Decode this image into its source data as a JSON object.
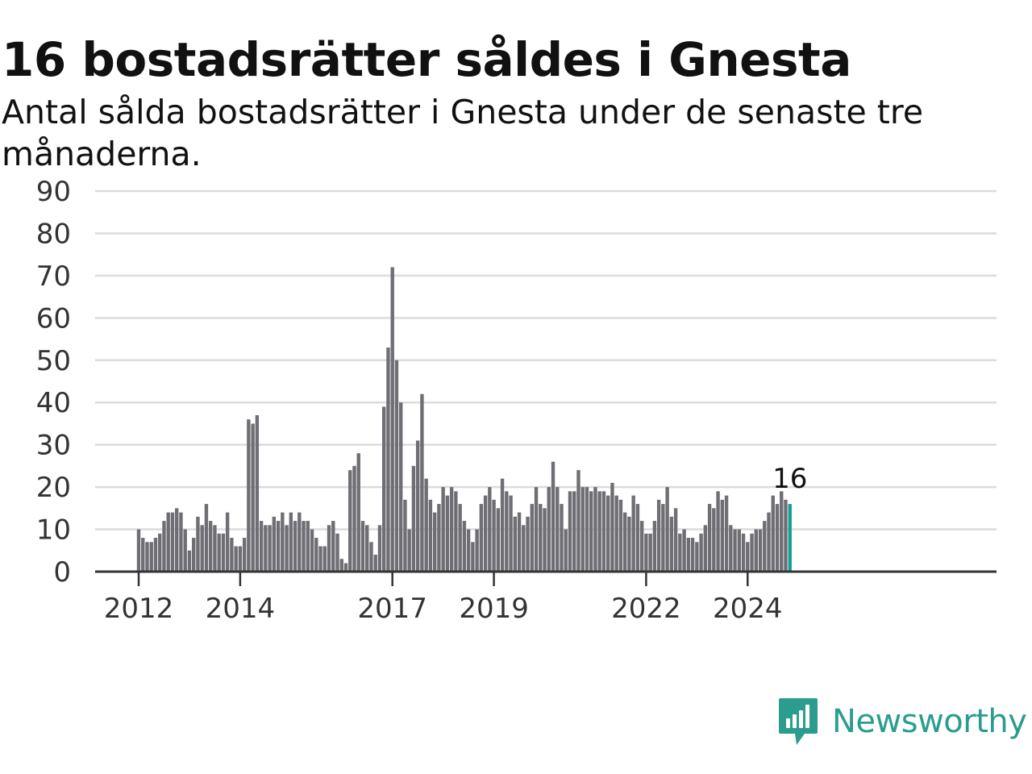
{
  "title": "16 bostadsrätter såldes i Gnesta",
  "subtitle": "Antal sålda bostadsrätter i Gnesta under de senaste tre månaderna.",
  "brand": {
    "name": "Newsworthy",
    "color": "#2a9d8f",
    "icon": "newsworthy-logo-icon"
  },
  "chart_data": {
    "type": "bar",
    "ylim": [
      0,
      90
    ],
    "yticks": [
      0,
      10,
      20,
      30,
      40,
      50,
      60,
      70,
      80,
      90
    ],
    "grid": true,
    "legend": "none",
    "x_start": "2012-01",
    "x_end": "2024-11",
    "x_ticks": [
      {
        "label": "2012",
        "month": "2012-01"
      },
      {
        "label": "2014",
        "month": "2014-01"
      },
      {
        "label": "2017",
        "month": "2017-01"
      },
      {
        "label": "2019",
        "month": "2019-01"
      },
      {
        "label": "2022",
        "month": "2022-01"
      },
      {
        "label": "2024",
        "month": "2024-01"
      }
    ],
    "values": [
      10,
      8,
      7,
      7,
      8,
      9,
      12,
      14,
      14,
      15,
      14,
      10,
      5,
      8,
      13,
      11,
      16,
      12,
      11,
      9,
      9,
      14,
      8,
      6,
      6,
      8,
      36,
      35,
      37,
      12,
      11,
      11,
      13,
      12,
      14,
      11,
      14,
      12,
      14,
      12,
      12,
      10,
      8,
      6,
      6,
      11,
      12,
      9,
      3,
      2,
      24,
      25,
      28,
      12,
      11,
      7,
      4,
      11,
      39,
      53,
      72,
      50,
      40,
      17,
      10,
      25,
      31,
      42,
      22,
      17,
      14,
      16,
      20,
      18,
      20,
      19,
      16,
      12,
      10,
      7,
      10,
      16,
      18,
      20,
      17,
      15,
      22,
      19,
      18,
      13,
      14,
      11,
      13,
      16,
      20,
      16,
      15,
      20,
      26,
      20,
      16,
      10,
      19,
      19,
      24,
      20,
      20,
      19,
      20,
      19,
      19,
      18,
      21,
      18,
      17,
      14,
      13,
      18,
      16,
      12,
      9,
      9,
      12,
      17,
      16,
      20,
      13,
      15,
      9,
      10,
      8,
      8,
      7,
      9,
      11,
      16,
      15,
      19,
      17,
      18,
      11,
      10,
      10,
      9,
      7,
      9,
      10,
      10,
      12,
      14,
      18,
      16,
      19,
      17,
      16
    ],
    "bar_color": "#6f6e74",
    "highlight_color": "#169e92",
    "highlight_last": true,
    "last_value_label": "16"
  }
}
